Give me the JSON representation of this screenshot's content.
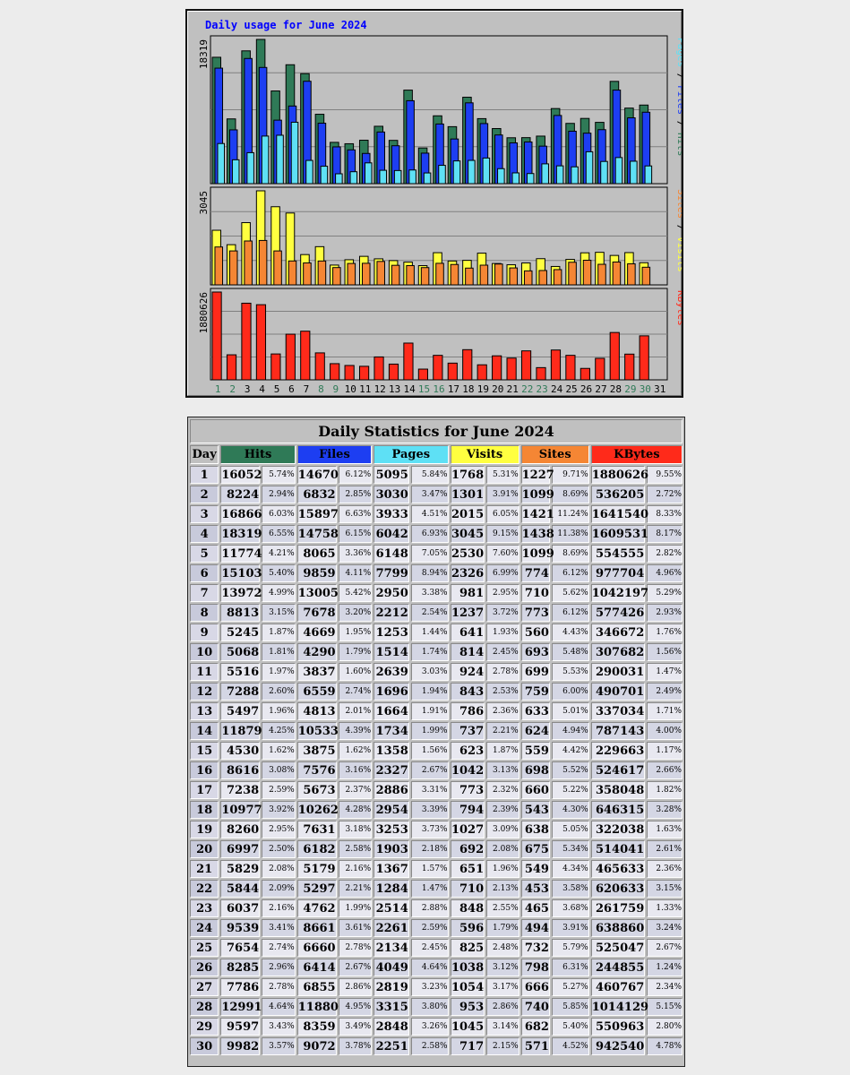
{
  "chart_data": {
    "type": "bar",
    "title": "Daily usage for June 2024",
    "x": [
      "1",
      "2",
      "3",
      "4",
      "5",
      "6",
      "7",
      "8",
      "9",
      "10",
      "11",
      "12",
      "13",
      "14",
      "15",
      "16",
      "17",
      "18",
      "19",
      "20",
      "21",
      "22",
      "23",
      "24",
      "25",
      "26",
      "27",
      "28",
      "29",
      "30",
      "31"
    ],
    "weekend_days": [
      "1",
      "2",
      "8",
      "9",
      "15",
      "16",
      "22",
      "23",
      "29",
      "30"
    ],
    "panels": [
      {
        "max_label": "18319",
        "ylim": [
          0,
          18319
        ],
        "legend": [
          "Pages",
          "Files",
          "Hits"
        ],
        "series": [
          {
            "name": "Hits",
            "color": "#2f7a57",
            "values": [
              16052,
              8224,
              16866,
              18319,
              11774,
              15103,
              13972,
              8813,
              5245,
              5068,
              5516,
              7288,
              5497,
              11879,
              4530,
              8616,
              7238,
              10977,
              8260,
              6997,
              5829,
              5844,
              6037,
              9539,
              7654,
              8285,
              7786,
              12991,
              9597,
              9982,
              0
            ]
          },
          {
            "name": "Files",
            "color": "#1d3ef2",
            "values": [
              14670,
              6832,
              15897,
              14758,
              8065,
              9859,
              13005,
              7678,
              4669,
              4290,
              3837,
              6559,
              4813,
              10533,
              3875,
              7576,
              5673,
              10262,
              7631,
              6182,
              5179,
              5297,
              4762,
              8661,
              6660,
              6414,
              6855,
              11880,
              8359,
              9072,
              0
            ]
          },
          {
            "name": "Pages",
            "color": "#5ee0f5",
            "values": [
              5095,
              3030,
              3933,
              6042,
              6148,
              7799,
              2950,
              2212,
              1253,
              1514,
              2639,
              1696,
              1664,
              1734,
              1358,
              2327,
              2886,
              2954,
              3253,
              1903,
              1367,
              1284,
              2514,
              2261,
              2134,
              4049,
              2819,
              3315,
              2848,
              2251,
              0
            ]
          }
        ]
      },
      {
        "max_label": "3045",
        "ylim": [
          0,
          3045
        ],
        "legend": [
          "Sites",
          "Visits"
        ],
        "series": [
          {
            "name": "Visits",
            "color": "#ffff40",
            "values": [
              1768,
              1301,
              2015,
              3045,
              2530,
              2326,
              981,
              1237,
              641,
              814,
              924,
              843,
              786,
              737,
              623,
              1042,
              773,
              794,
              1027,
              692,
              651,
              710,
              848,
              596,
              825,
              1038,
              1054,
              953,
              1045,
              717,
              0
            ]
          },
          {
            "name": "Sites",
            "color": "#f58634",
            "values": [
              1227,
              1099,
              1421,
              1438,
              1099,
              774,
              710,
              773,
              560,
              693,
              699,
              759,
              633,
              624,
              559,
              698,
              660,
              543,
              638,
              675,
              549,
              453,
              465,
              494,
              732,
              798,
              666,
              740,
              682,
              571,
              0
            ]
          }
        ]
      },
      {
        "max_label": "1880626",
        "ylim": [
          0,
          1880626
        ],
        "legend": [
          "KBytes"
        ],
        "series": [
          {
            "name": "KBytes",
            "color": "#ff2a1a",
            "values": [
              1880626,
              536205,
              1641540,
              1609531,
              554555,
              977704,
              1042197,
              577426,
              346672,
              307682,
              290031,
              490701,
              337034,
              787143,
              229663,
              524617,
              358048,
              646315,
              322038,
              514041,
              465633,
              620633,
              261759,
              638860,
              525047,
              244855,
              460767,
              1014129,
              550963,
              942540,
              0
            ]
          }
        ]
      }
    ]
  },
  "table": {
    "title": "Daily Statistics for June 2024",
    "headers": [
      "Day",
      "Hits",
      "Files",
      "Pages",
      "Visits",
      "Sites",
      "KBytes"
    ],
    "rows": [
      {
        "day": "1",
        "hits": "16052",
        "hits_pct": "5.74%",
        "files": "14670",
        "files_pct": "6.12%",
        "pages": "5095",
        "pages_pct": "5.84%",
        "visits": "1768",
        "visits_pct": "5.31%",
        "sites": "1227",
        "sites_pct": "9.71%",
        "kb": "1880626",
        "kb_pct": "9.55%"
      },
      {
        "day": "2",
        "hits": "8224",
        "hits_pct": "2.94%",
        "files": "6832",
        "files_pct": "2.85%",
        "pages": "3030",
        "pages_pct": "3.47%",
        "visits": "1301",
        "visits_pct": "3.91%",
        "sites": "1099",
        "sites_pct": "8.69%",
        "kb": "536205",
        "kb_pct": "2.72%"
      },
      {
        "day": "3",
        "hits": "16866",
        "hits_pct": "6.03%",
        "files": "15897",
        "files_pct": "6.63%",
        "pages": "3933",
        "pages_pct": "4.51%",
        "visits": "2015",
        "visits_pct": "6.05%",
        "sites": "1421",
        "sites_pct": "11.24%",
        "kb": "1641540",
        "kb_pct": "8.33%"
      },
      {
        "day": "4",
        "hits": "18319",
        "hits_pct": "6.55%",
        "files": "14758",
        "files_pct": "6.15%",
        "pages": "6042",
        "pages_pct": "6.93%",
        "visits": "3045",
        "visits_pct": "9.15%",
        "sites": "1438",
        "sites_pct": "11.38%",
        "kb": "1609531",
        "kb_pct": "8.17%"
      },
      {
        "day": "5",
        "hits": "11774",
        "hits_pct": "4.21%",
        "files": "8065",
        "files_pct": "3.36%",
        "pages": "6148",
        "pages_pct": "7.05%",
        "visits": "2530",
        "visits_pct": "7.60%",
        "sites": "1099",
        "sites_pct": "8.69%",
        "kb": "554555",
        "kb_pct": "2.82%"
      },
      {
        "day": "6",
        "hits": "15103",
        "hits_pct": "5.40%",
        "files": "9859",
        "files_pct": "4.11%",
        "pages": "7799",
        "pages_pct": "8.94%",
        "visits": "2326",
        "visits_pct": "6.99%",
        "sites": "774",
        "sites_pct": "6.12%",
        "kb": "977704",
        "kb_pct": "4.96%"
      },
      {
        "day": "7",
        "hits": "13972",
        "hits_pct": "4.99%",
        "files": "13005",
        "files_pct": "5.42%",
        "pages": "2950",
        "pages_pct": "3.38%",
        "visits": "981",
        "visits_pct": "2.95%",
        "sites": "710",
        "sites_pct": "5.62%",
        "kb": "1042197",
        "kb_pct": "5.29%"
      },
      {
        "day": "8",
        "hits": "8813",
        "hits_pct": "3.15%",
        "files": "7678",
        "files_pct": "3.20%",
        "pages": "2212",
        "pages_pct": "2.54%",
        "visits": "1237",
        "visits_pct": "3.72%",
        "sites": "773",
        "sites_pct": "6.12%",
        "kb": "577426",
        "kb_pct": "2.93%"
      },
      {
        "day": "9",
        "hits": "5245",
        "hits_pct": "1.87%",
        "files": "4669",
        "files_pct": "1.95%",
        "pages": "1253",
        "pages_pct": "1.44%",
        "visits": "641",
        "visits_pct": "1.93%",
        "sites": "560",
        "sites_pct": "4.43%",
        "kb": "346672",
        "kb_pct": "1.76%"
      },
      {
        "day": "10",
        "hits": "5068",
        "hits_pct": "1.81%",
        "files": "4290",
        "files_pct": "1.79%",
        "pages": "1514",
        "pages_pct": "1.74%",
        "visits": "814",
        "visits_pct": "2.45%",
        "sites": "693",
        "sites_pct": "5.48%",
        "kb": "307682",
        "kb_pct": "1.56%"
      },
      {
        "day": "11",
        "hits": "5516",
        "hits_pct": "1.97%",
        "files": "3837",
        "files_pct": "1.60%",
        "pages": "2639",
        "pages_pct": "3.03%",
        "visits": "924",
        "visits_pct": "2.78%",
        "sites": "699",
        "sites_pct": "5.53%",
        "kb": "290031",
        "kb_pct": "1.47%"
      },
      {
        "day": "12",
        "hits": "7288",
        "hits_pct": "2.60%",
        "files": "6559",
        "files_pct": "2.74%",
        "pages": "1696",
        "pages_pct": "1.94%",
        "visits": "843",
        "visits_pct": "2.53%",
        "sites": "759",
        "sites_pct": "6.00%",
        "kb": "490701",
        "kb_pct": "2.49%"
      },
      {
        "day": "13",
        "hits": "5497",
        "hits_pct": "1.96%",
        "files": "4813",
        "files_pct": "2.01%",
        "pages": "1664",
        "pages_pct": "1.91%",
        "visits": "786",
        "visits_pct": "2.36%",
        "sites": "633",
        "sites_pct": "5.01%",
        "kb": "337034",
        "kb_pct": "1.71%"
      },
      {
        "day": "14",
        "hits": "11879",
        "hits_pct": "4.25%",
        "files": "10533",
        "files_pct": "4.39%",
        "pages": "1734",
        "pages_pct": "1.99%",
        "visits": "737",
        "visits_pct": "2.21%",
        "sites": "624",
        "sites_pct": "4.94%",
        "kb": "787143",
        "kb_pct": "4.00%"
      },
      {
        "day": "15",
        "hits": "4530",
        "hits_pct": "1.62%",
        "files": "3875",
        "files_pct": "1.62%",
        "pages": "1358",
        "pages_pct": "1.56%",
        "visits": "623",
        "visits_pct": "1.87%",
        "sites": "559",
        "sites_pct": "4.42%",
        "kb": "229663",
        "kb_pct": "1.17%"
      },
      {
        "day": "16",
        "hits": "8616",
        "hits_pct": "3.08%",
        "files": "7576",
        "files_pct": "3.16%",
        "pages": "2327",
        "pages_pct": "2.67%",
        "visits": "1042",
        "visits_pct": "3.13%",
        "sites": "698",
        "sites_pct": "5.52%",
        "kb": "524617",
        "kb_pct": "2.66%"
      },
      {
        "day": "17",
        "hits": "7238",
        "hits_pct": "2.59%",
        "files": "5673",
        "files_pct": "2.37%",
        "pages": "2886",
        "pages_pct": "3.31%",
        "visits": "773",
        "visits_pct": "2.32%",
        "sites": "660",
        "sites_pct": "5.22%",
        "kb": "358048",
        "kb_pct": "1.82%"
      },
      {
        "day": "18",
        "hits": "10977",
        "hits_pct": "3.92%",
        "files": "10262",
        "files_pct": "4.28%",
        "pages": "2954",
        "pages_pct": "3.39%",
        "visits": "794",
        "visits_pct": "2.39%",
        "sites": "543",
        "sites_pct": "4.30%",
        "kb": "646315",
        "kb_pct": "3.28%"
      },
      {
        "day": "19",
        "hits": "8260",
        "hits_pct": "2.95%",
        "files": "7631",
        "files_pct": "3.18%",
        "pages": "3253",
        "pages_pct": "3.73%",
        "visits": "1027",
        "visits_pct": "3.09%",
        "sites": "638",
        "sites_pct": "5.05%",
        "kb": "322038",
        "kb_pct": "1.63%"
      },
      {
        "day": "20",
        "hits": "6997",
        "hits_pct": "2.50%",
        "files": "6182",
        "files_pct": "2.58%",
        "pages": "1903",
        "pages_pct": "2.18%",
        "visits": "692",
        "visits_pct": "2.08%",
        "sites": "675",
        "sites_pct": "5.34%",
        "kb": "514041",
        "kb_pct": "2.61%"
      },
      {
        "day": "21",
        "hits": "5829",
        "hits_pct": "2.08%",
        "files": "5179",
        "files_pct": "2.16%",
        "pages": "1367",
        "pages_pct": "1.57%",
        "visits": "651",
        "visits_pct": "1.96%",
        "sites": "549",
        "sites_pct": "4.34%",
        "kb": "465633",
        "kb_pct": "2.36%"
      },
      {
        "day": "22",
        "hits": "5844",
        "hits_pct": "2.09%",
        "files": "5297",
        "files_pct": "2.21%",
        "pages": "1284",
        "pages_pct": "1.47%",
        "visits": "710",
        "visits_pct": "2.13%",
        "sites": "453",
        "sites_pct": "3.58%",
        "kb": "620633",
        "kb_pct": "3.15%"
      },
      {
        "day": "23",
        "hits": "6037",
        "hits_pct": "2.16%",
        "files": "4762",
        "files_pct": "1.99%",
        "pages": "2514",
        "pages_pct": "2.88%",
        "visits": "848",
        "visits_pct": "2.55%",
        "sites": "465",
        "sites_pct": "3.68%",
        "kb": "261759",
        "kb_pct": "1.33%"
      },
      {
        "day": "24",
        "hits": "9539",
        "hits_pct": "3.41%",
        "files": "8661",
        "files_pct": "3.61%",
        "pages": "2261",
        "pages_pct": "2.59%",
        "visits": "596",
        "visits_pct": "1.79%",
        "sites": "494",
        "sites_pct": "3.91%",
        "kb": "638860",
        "kb_pct": "3.24%"
      },
      {
        "day": "25",
        "hits": "7654",
        "hits_pct": "2.74%",
        "files": "6660",
        "files_pct": "2.78%",
        "pages": "2134",
        "pages_pct": "2.45%",
        "visits": "825",
        "visits_pct": "2.48%",
        "sites": "732",
        "sites_pct": "5.79%",
        "kb": "525047",
        "kb_pct": "2.67%"
      },
      {
        "day": "26",
        "hits": "8285",
        "hits_pct": "2.96%",
        "files": "6414",
        "files_pct": "2.67%",
        "pages": "4049",
        "pages_pct": "4.64%",
        "visits": "1038",
        "visits_pct": "3.12%",
        "sites": "798",
        "sites_pct": "6.31%",
        "kb": "244855",
        "kb_pct": "1.24%"
      },
      {
        "day": "27",
        "hits": "7786",
        "hits_pct": "2.78%",
        "files": "6855",
        "files_pct": "2.86%",
        "pages": "2819",
        "pages_pct": "3.23%",
        "visits": "1054",
        "visits_pct": "3.17%",
        "sites": "666",
        "sites_pct": "5.27%",
        "kb": "460767",
        "kb_pct": "2.34%"
      },
      {
        "day": "28",
        "hits": "12991",
        "hits_pct": "4.64%",
        "files": "11880",
        "files_pct": "4.95%",
        "pages": "3315",
        "pages_pct": "3.80%",
        "visits": "953",
        "visits_pct": "2.86%",
        "sites": "740",
        "sites_pct": "5.85%",
        "kb": "1014129",
        "kb_pct": "5.15%"
      },
      {
        "day": "29",
        "hits": "9597",
        "hits_pct": "3.43%",
        "files": "8359",
        "files_pct": "3.49%",
        "pages": "2848",
        "pages_pct": "3.26%",
        "visits": "1045",
        "visits_pct": "3.14%",
        "sites": "682",
        "sites_pct": "5.40%",
        "kb": "550963",
        "kb_pct": "2.80%"
      },
      {
        "day": "30",
        "hits": "9982",
        "hits_pct": "3.57%",
        "files": "9072",
        "files_pct": "3.78%",
        "pages": "2251",
        "pages_pct": "2.58%",
        "visits": "717",
        "visits_pct": "2.15%",
        "sites": "571",
        "sites_pct": "4.52%",
        "kb": "942540",
        "kb_pct": "4.78%"
      }
    ]
  }
}
